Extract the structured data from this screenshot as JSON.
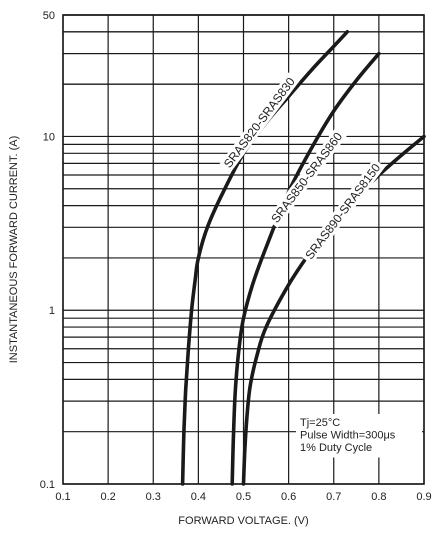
{
  "chart_data": {
    "type": "line",
    "title": "",
    "xlabel": "FORWARD VOLTAGE. (V)",
    "ylabel": "INSTANTANEOUS FORWARD CURRENT. (A)",
    "xlim": [
      0.1,
      0.9
    ],
    "ylim": [
      0.1,
      50
    ],
    "yscale": "log",
    "grid": true,
    "xticks": [
      "0.1",
      "0.2",
      "0.3",
      "0.4",
      "0.5",
      "0.6",
      "0.7",
      "0.8",
      "0.9"
    ],
    "yticks": [
      "0.1",
      "1",
      "10",
      "50"
    ],
    "series": [
      {
        "name": "SRAS820-SRAS830",
        "x": [
          0.365,
          0.368,
          0.372,
          0.378,
          0.385,
          0.393,
          0.4,
          0.42,
          0.45,
          0.5,
          0.55,
          0.6,
          0.65,
          0.7,
          0.73
        ],
        "y": [
          0.1,
          0.2,
          0.35,
          0.6,
          1.0,
          1.5,
          2.0,
          3.0,
          4.5,
          8.0,
          12.0,
          17.0,
          24.0,
          33.0,
          40.0
        ]
      },
      {
        "name": "SRAS850-SRAS860",
        "x": [
          0.475,
          0.478,
          0.482,
          0.49,
          0.5,
          0.52,
          0.55,
          0.6,
          0.65,
          0.7,
          0.75,
          0.8
        ],
        "y": [
          0.1,
          0.2,
          0.35,
          0.6,
          0.9,
          1.4,
          2.3,
          4.8,
          8.5,
          14.0,
          21.0,
          30.0
        ]
      },
      {
        "name": "SRAS890-SRAS8150",
        "x": [
          0.5,
          0.503,
          0.508,
          0.515,
          0.53,
          0.55,
          0.6,
          0.65,
          0.7,
          0.75,
          0.8,
          0.85,
          0.9
        ],
        "y": [
          0.1,
          0.16,
          0.25,
          0.37,
          0.55,
          0.8,
          1.4,
          2.2,
          3.3,
          4.5,
          6.0,
          7.8,
          10.0
        ]
      }
    ],
    "annotations": [
      "Tj=25°C",
      "Pulse Width=300μs",
      "1% Duty Cycle"
    ],
    "colors": {
      "curve": "#1a1a1a",
      "grid": "#1a1a1a",
      "background": "#ffffff"
    }
  }
}
